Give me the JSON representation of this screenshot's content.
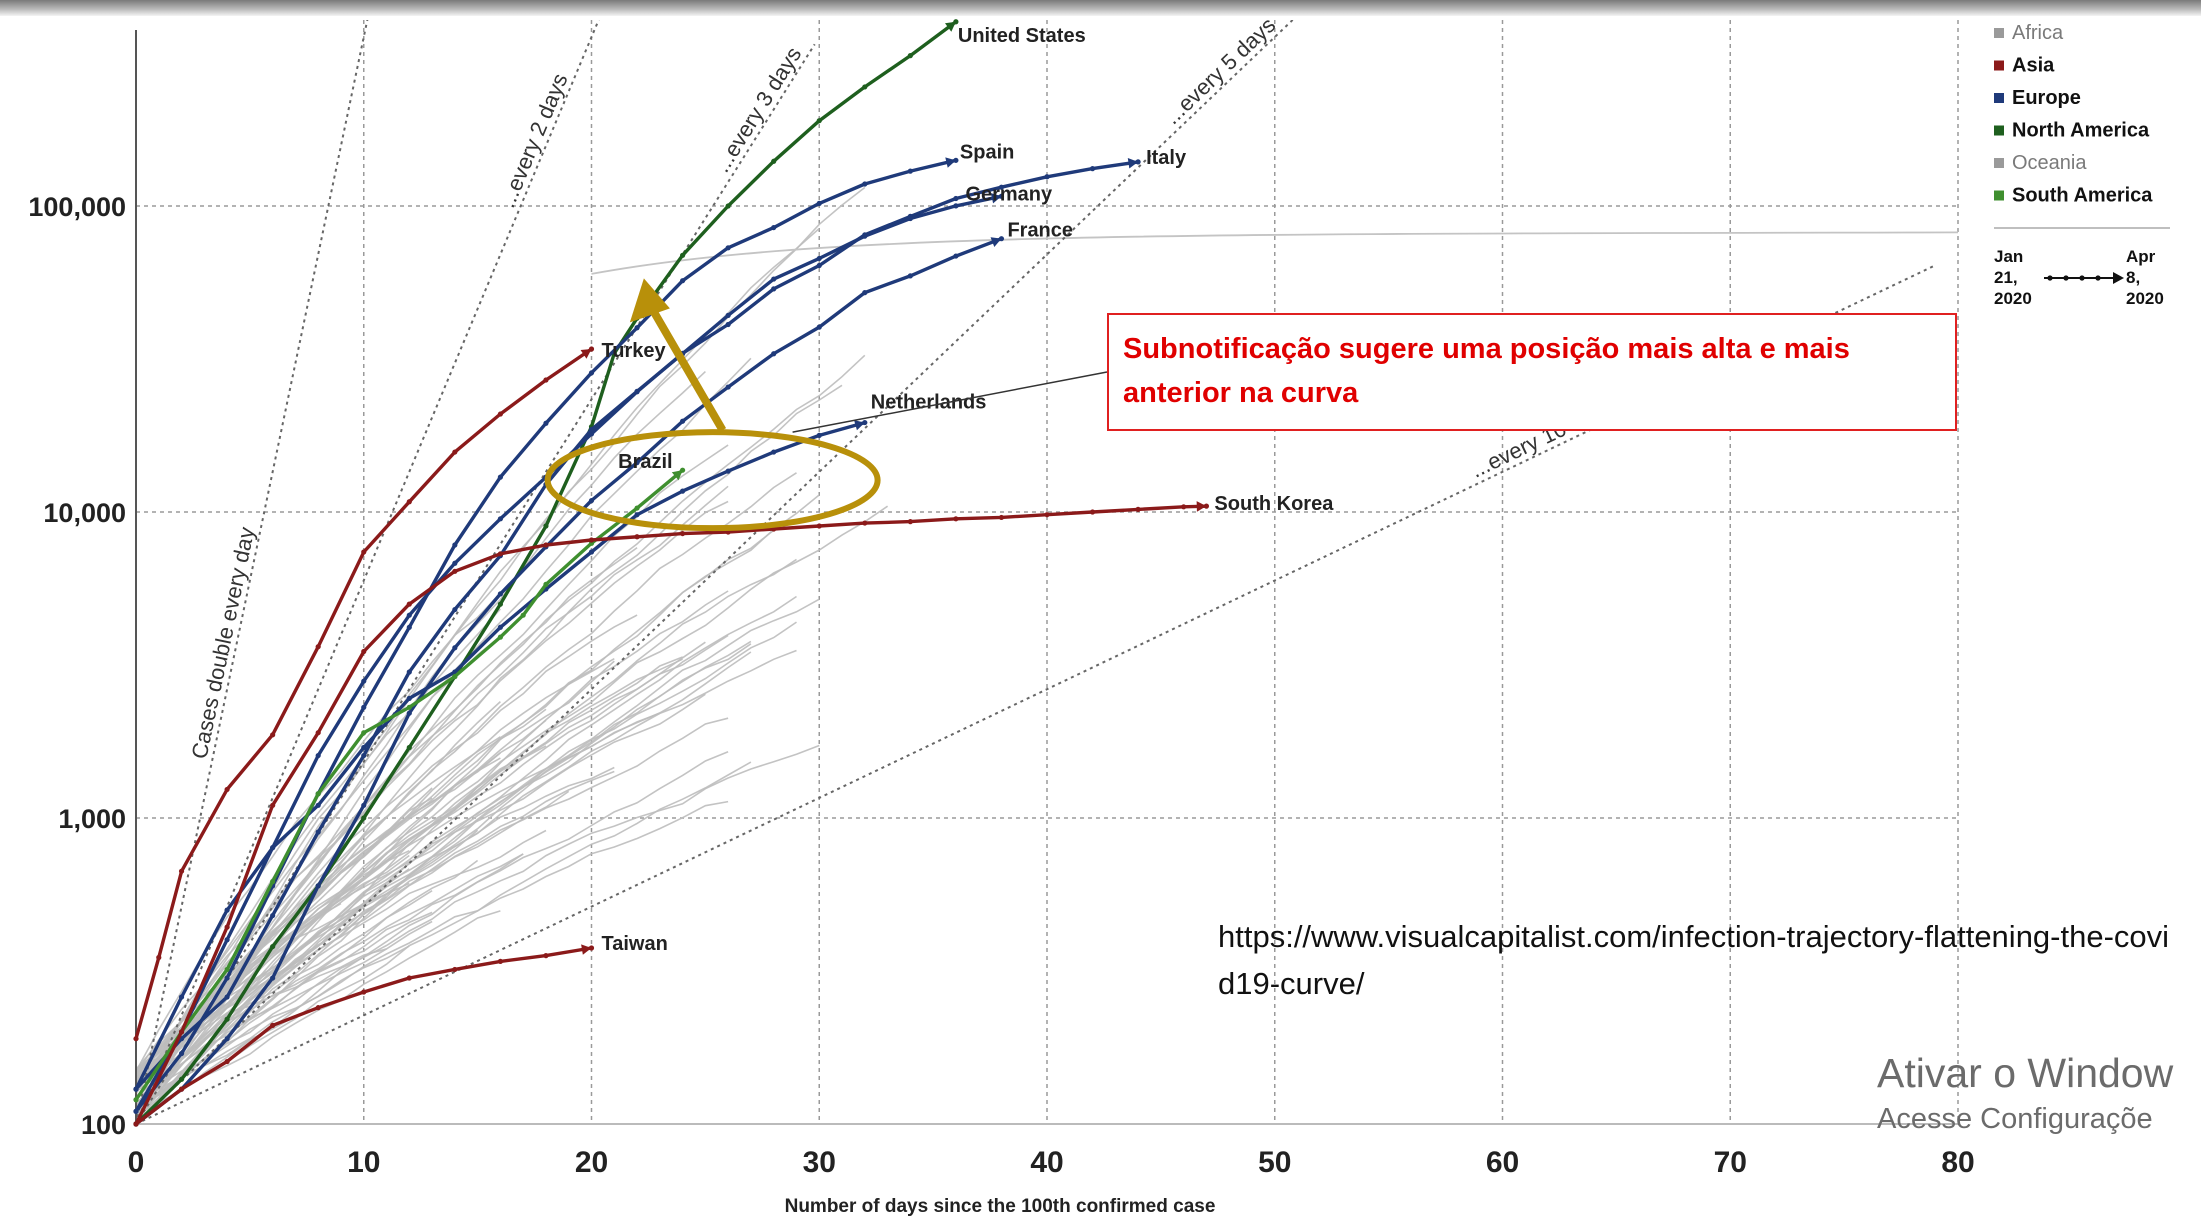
{
  "chart_data": {
    "type": "line",
    "title": "",
    "xlabel": "Number of days since the 100th confirmed case",
    "ylabel": "",
    "yscale": "log",
    "xlim": [
      0,
      80
    ],
    "ylim": [
      100,
      400000
    ],
    "x_ticks": [
      0,
      10,
      20,
      30,
      40,
      50,
      60,
      70,
      80
    ],
    "x_tick_labels": [
      "0",
      "10",
      "20",
      "30",
      "40",
      "50",
      "60",
      "70",
      "80"
    ],
    "y_ticks": [
      100,
      1000,
      10000,
      100000
    ],
    "y_tick_labels": [
      "100",
      "1,000",
      "10,000",
      "100,000"
    ],
    "grid": true,
    "legend_position": "top-right",
    "legend": [
      {
        "label": "Africa",
        "color": "#9a9a9a"
      },
      {
        "label": "Asia",
        "color": "#8b1a1a"
      },
      {
        "label": "Europe",
        "color": "#1f3a7a"
      },
      {
        "label": "North America",
        "color": "#1e5f1e"
      },
      {
        "label": "Oceania",
        "color": "#9a9a9a"
      },
      {
        "label": "South America",
        "color": "#3f8f2f"
      }
    ],
    "date_range": {
      "start": "Jan 21, 2020",
      "end": "Apr 8, 2020",
      "start_parts": [
        "Jan",
        "21,",
        "2020"
      ],
      "end_parts": [
        "Apr",
        "8,",
        "2020"
      ]
    },
    "doubling_lines": [
      {
        "label": "Cases double every day",
        "days": 1
      },
      {
        "label": "...every 2 days",
        "days": 2
      },
      {
        "label": "...every 3 days",
        "days": 3
      },
      {
        "label": "...every 5 days",
        "days": 5
      },
      {
        "label": "...every 10 days",
        "days": 10
      }
    ],
    "series": [
      {
        "name": "United States",
        "region": "North America",
        "color": "#1e5f1e",
        "points": [
          [
            0,
            100
          ],
          [
            2,
            140
          ],
          [
            4,
            220
          ],
          [
            6,
            380
          ],
          [
            8,
            600
          ],
          [
            10,
            1000
          ],
          [
            12,
            1700
          ],
          [
            14,
            2900
          ],
          [
            16,
            5000
          ],
          [
            18,
            9000
          ],
          [
            20,
            19000
          ],
          [
            21,
            33000
          ],
          [
            22,
            43000
          ],
          [
            24,
            69000
          ],
          [
            26,
            100000
          ],
          [
            28,
            140000
          ],
          [
            30,
            190000
          ],
          [
            32,
            245000
          ],
          [
            34,
            310000
          ],
          [
            36,
            400000
          ]
        ]
      },
      {
        "name": "Spain",
        "region": "Europe",
        "color": "#1f3a7a",
        "points": [
          [
            0,
            110
          ],
          [
            2,
            170
          ],
          [
            4,
            300
          ],
          [
            6,
            600
          ],
          [
            8,
            1200
          ],
          [
            10,
            2300
          ],
          [
            12,
            4200
          ],
          [
            14,
            7800
          ],
          [
            16,
            13000
          ],
          [
            18,
            19500
          ],
          [
            20,
            28500
          ],
          [
            22,
            40000
          ],
          [
            24,
            57000
          ],
          [
            26,
            73000
          ],
          [
            28,
            85000
          ],
          [
            30,
            102000
          ],
          [
            32,
            118000
          ],
          [
            34,
            130000
          ],
          [
            36,
            141000
          ]
        ]
      },
      {
        "name": "Italy",
        "region": "Europe",
        "color": "#1f3a7a",
        "points": [
          [
            0,
            110
          ],
          [
            2,
            200
          ],
          [
            4,
            400
          ],
          [
            6,
            800
          ],
          [
            8,
            1600
          ],
          [
            10,
            2800
          ],
          [
            12,
            4600
          ],
          [
            14,
            6800
          ],
          [
            16,
            9500
          ],
          [
            18,
            13000
          ],
          [
            20,
            18000
          ],
          [
            22,
            24700
          ],
          [
            24,
            33000
          ],
          [
            26,
            41000
          ],
          [
            28,
            53600
          ],
          [
            30,
            63900
          ],
          [
            32,
            80500
          ],
          [
            34,
            92500
          ],
          [
            36,
            105800
          ],
          [
            38,
            115200
          ],
          [
            40,
            124600
          ],
          [
            42,
            132500
          ],
          [
            44,
            139400
          ]
        ]
      },
      {
        "name": "Germany",
        "region": "Europe",
        "color": "#1f3a7a",
        "points": [
          [
            0,
            130
          ],
          [
            2,
            190
          ],
          [
            4,
            260
          ],
          [
            6,
            480
          ],
          [
            8,
            900
          ],
          [
            10,
            1600
          ],
          [
            12,
            3000
          ],
          [
            14,
            4800
          ],
          [
            16,
            7200
          ],
          [
            18,
            12300
          ],
          [
            20,
            18600
          ],
          [
            22,
            24800
          ],
          [
            24,
            32900
          ],
          [
            26,
            43900
          ],
          [
            28,
            57700
          ],
          [
            30,
            67400
          ],
          [
            32,
            79700
          ],
          [
            34,
            91000
          ],
          [
            36,
            100100
          ],
          [
            38,
            107600
          ]
        ]
      },
      {
        "name": "France",
        "region": "Europe",
        "color": "#1f3a7a",
        "points": [
          [
            0,
            100
          ],
          [
            2,
            130
          ],
          [
            4,
            190
          ],
          [
            6,
            300
          ],
          [
            8,
            600
          ],
          [
            10,
            1100
          ],
          [
            12,
            2200
          ],
          [
            14,
            3600
          ],
          [
            16,
            5400
          ],
          [
            18,
            7700
          ],
          [
            20,
            10900
          ],
          [
            22,
            14500
          ],
          [
            24,
            19800
          ],
          [
            26,
            25600
          ],
          [
            28,
            32900
          ],
          [
            30,
            40200
          ],
          [
            32,
            52100
          ],
          [
            34,
            59100
          ],
          [
            36,
            68600
          ],
          [
            38,
            78200
          ]
        ]
      },
      {
        "name": "Turkey",
        "region": "Asia",
        "color": "#8b1a1a",
        "points": [
          [
            0,
            190
          ],
          [
            1,
            350
          ],
          [
            2,
            670
          ],
          [
            4,
            1240
          ],
          [
            6,
            1870
          ],
          [
            8,
            3630
          ],
          [
            10,
            7400
          ],
          [
            12,
            10800
          ],
          [
            14,
            15700
          ],
          [
            16,
            20900
          ],
          [
            18,
            27000
          ],
          [
            20,
            34100
          ]
        ]
      },
      {
        "name": "Netherlands",
        "region": "Europe",
        "color": "#1f3a7a",
        "points": [
          [
            0,
            130
          ],
          [
            2,
            260
          ],
          [
            4,
            500
          ],
          [
            6,
            800
          ],
          [
            8,
            1100
          ],
          [
            10,
            1700
          ],
          [
            12,
            2460
          ],
          [
            14,
            3000
          ],
          [
            16,
            4200
          ],
          [
            18,
            5600
          ],
          [
            20,
            7400
          ],
          [
            22,
            9800
          ],
          [
            24,
            11700
          ],
          [
            26,
            13600
          ],
          [
            28,
            15700
          ],
          [
            30,
            17800
          ],
          [
            32,
            19600
          ]
        ]
      },
      {
        "name": "Brazil",
        "region": "South America",
        "color": "#3f8f2f",
        "points": [
          [
            0,
            120
          ],
          [
            2,
            200
          ],
          [
            4,
            320
          ],
          [
            6,
            620
          ],
          [
            8,
            1200
          ],
          [
            10,
            1900
          ],
          [
            12,
            2300
          ],
          [
            14,
            2900
          ],
          [
            16,
            3900
          ],
          [
            17,
            4600
          ],
          [
            18,
            5800
          ],
          [
            20,
            7900
          ],
          [
            22,
            10300
          ],
          [
            24,
            13700
          ]
        ]
      },
      {
        "name": "South Korea",
        "region": "Asia",
        "color": "#8b1a1a",
        "points": [
          [
            0,
            100
          ],
          [
            2,
            200
          ],
          [
            4,
            440
          ],
          [
            6,
            1100
          ],
          [
            8,
            1900
          ],
          [
            10,
            3500
          ],
          [
            12,
            5000
          ],
          [
            14,
            6400
          ],
          [
            16,
            7300
          ],
          [
            18,
            7800
          ],
          [
            20,
            8100
          ],
          [
            22,
            8300
          ],
          [
            24,
            8500
          ],
          [
            26,
            8600
          ],
          [
            28,
            8800
          ],
          [
            30,
            9000
          ],
          [
            32,
            9200
          ],
          [
            34,
            9300
          ],
          [
            36,
            9500
          ],
          [
            38,
            9600
          ],
          [
            40,
            9800
          ],
          [
            42,
            10000
          ],
          [
            44,
            10200
          ],
          [
            46,
            10400
          ],
          [
            47,
            10450
          ]
        ]
      },
      {
        "name": "Taiwan",
        "region": "Asia",
        "color": "#8b1a1a",
        "points": [
          [
            0,
            100
          ],
          [
            2,
            130
          ],
          [
            4,
            160
          ],
          [
            6,
            210
          ],
          [
            8,
            240
          ],
          [
            10,
            270
          ],
          [
            12,
            300
          ],
          [
            14,
            320
          ],
          [
            16,
            340
          ],
          [
            18,
            355
          ],
          [
            20,
            376
          ]
        ]
      }
    ],
    "annotation": "Subnotificação sugere uma posição mais alta e mais anterior na curva"
  },
  "source_url": "https://www.visualcapitalist.com/infection-trajectory-flattening-the-covid19-curve/",
  "watermark": {
    "line1": "Ativar o Window",
    "line2": "Acesse Configuraçõe"
  },
  "colors": {
    "asia": "#8b1a1a",
    "europe": "#1f3a7a",
    "north_america": "#1e5f1e",
    "south_america": "#3f8f2f",
    "other": "#b4b4b4",
    "highlight": "#b8900a",
    "annotation": "#e00000"
  }
}
